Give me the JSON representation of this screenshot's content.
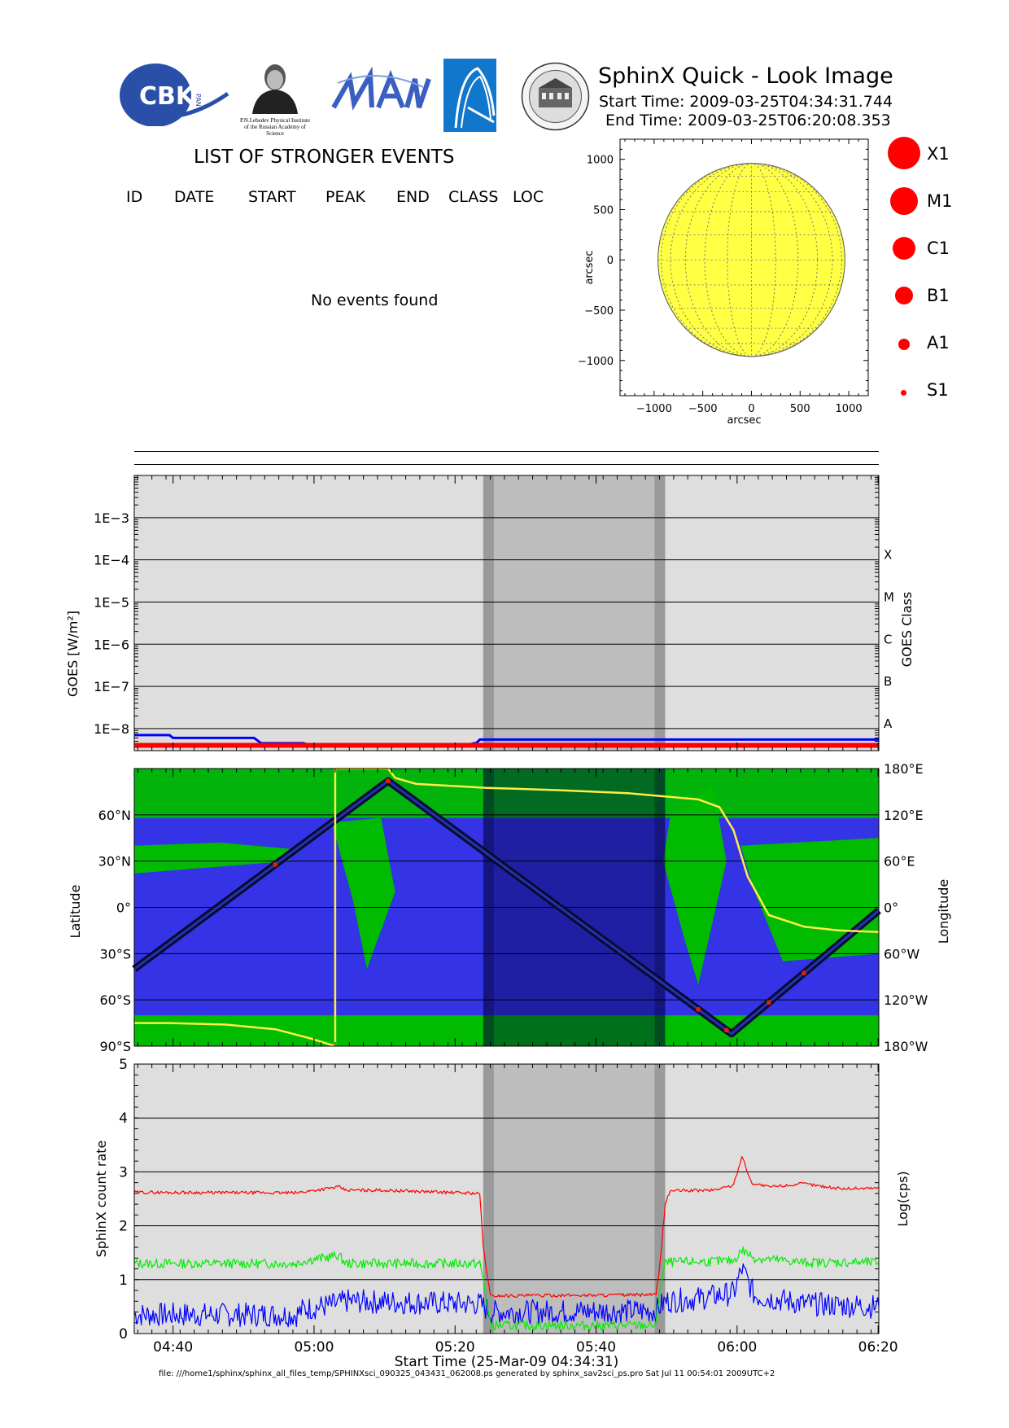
{
  "header": {
    "title": "SphinX Quick - Look Image",
    "start_time": "Start Time: 2009-03-25T04:34:31.744",
    "end_time": "End Time: 2009-03-25T06:20:08.353",
    "logos": {
      "cbk": "CBK",
      "cbk_small": "PAN",
      "lebedev": "P.N.Lebedev Physical Institute of the Russian Academy of Science"
    }
  },
  "events_list": {
    "title": "LIST OF STRONGER EVENTS",
    "columns": [
      "ID",
      "DATE",
      "START",
      "PEAK",
      "END",
      "CLASS",
      "LOC"
    ],
    "empty_message": "No events found"
  },
  "legend": {
    "items": [
      {
        "label": "X1",
        "radius": 20
      },
      {
        "label": "M1",
        "radius": 17
      },
      {
        "label": "C1",
        "radius": 14
      },
      {
        "label": "B1",
        "radius": 11
      },
      {
        "label": "A1",
        "radius": 7
      },
      {
        "label": "S1",
        "radius": 3.5
      }
    ],
    "color": "#ff0000"
  },
  "chart_data": [
    {
      "type": "scatter",
      "name": "sun_disk",
      "xlabel": "arcsec",
      "ylabel": "arcsec",
      "xlim": [
        -1350,
        1200
      ],
      "ylim": [
        -1350,
        1200
      ],
      "xticks": [
        -1000,
        -500,
        0,
        500,
        1000
      ],
      "yticks": [
        -1000,
        -500,
        0,
        500,
        1000
      ],
      "xtick_labels": [
        "−1000",
        "−500",
        "0",
        "500",
        "1000"
      ],
      "ytick_labels": [
        "−1000",
        "−500",
        "0",
        "500",
        "1000"
      ],
      "disk_center": [
        0,
        0
      ],
      "disk_radius": 960,
      "disk_color": "#ffff44",
      "events": []
    },
    {
      "type": "line",
      "name": "goes_flux",
      "ylabel": "GOES [W/m²]",
      "ylabel_right": "GOES Class",
      "log_scale": true,
      "ylim": [
        3e-09,
        0.01
      ],
      "ytick_labels": [
        {
          "value": 0.001,
          "label": "1E−3"
        },
        {
          "value": 0.0001,
          "label": "1E−4"
        },
        {
          "value": 1e-05,
          "label": "1E−5"
        },
        {
          "value": 1e-06,
          "label": "1E−6"
        },
        {
          "value": 1e-07,
          "label": "1E−7"
        },
        {
          "value": 1e-08,
          "label": "1E−8"
        }
      ],
      "class_labels": [
        {
          "value": 0.0001,
          "label": "X"
        },
        {
          "value": 1e-05,
          "label": "M"
        },
        {
          "value": 1e-06,
          "label": "C"
        },
        {
          "value": 1e-07,
          "label": "B"
        },
        {
          "value": 1e-08,
          "label": "A"
        }
      ],
      "shade_ranges_minutes": [
        [
          49.5,
          75.3
        ]
      ],
      "shade_edges_minutes": [
        [
          49.5,
          51.0
        ],
        [
          73.8,
          75.3
        ]
      ],
      "series": [
        {
          "color": "#0000ff",
          "x_minutes": [
            0,
            5,
            5.5,
            17,
            18,
            24,
            25,
            47,
            48.2,
            48.5,
            49,
            90,
            105.6
          ],
          "y": [
            7e-09,
            7e-09,
            6e-09,
            6e-09,
            4.5e-09,
            4.5e-09,
            4e-09,
            4e-09,
            4.5e-09,
            4.5e-09,
            5.5e-09,
            5.5e-09,
            5.5e-09
          ]
        },
        {
          "color": "#ff0000",
          "x_minutes": [
            0,
            105.6
          ],
          "y": [
            4e-09,
            4e-09
          ]
        }
      ]
    },
    {
      "type": "line",
      "name": "orbit_map",
      "ylabel": "Latitude",
      "ylabel_right": "Longitude",
      "ylim": [
        -90,
        90
      ],
      "yticks": [
        -90,
        -60,
        -30,
        0,
        30,
        60
      ],
      "ytick_labels": [
        "90°S",
        "60°S",
        "30°S",
        "0°",
        "30°N",
        "60°N"
      ],
      "yticks_right": [
        -180,
        -120,
        -60,
        0,
        60,
        120,
        180
      ],
      "ytick_labels_right": [
        "180°W",
        "120°W",
        "60°W",
        "0°",
        "60°E",
        "120°E",
        "180°E"
      ],
      "colors": {
        "ocean": "#3434e6",
        "land": "#00bb00",
        "track": "#0a0a33",
        "track_hot": "#dd2200",
        "longitude": "#ffee44"
      },
      "latitude_track": {
        "x_minutes": [
          0,
          36,
          84.7,
          105.6
        ],
        "y": [
          -40,
          82,
          -82,
          -2
        ]
      },
      "longitude_track": {
        "x_minutes": [
          0,
          5,
          13,
          20,
          25,
          28.5,
          36,
          37,
          40,
          50,
          60,
          70,
          80,
          83,
          85,
          87,
          90,
          95,
          100,
          105.6
        ],
        "y": [
          -150,
          -150,
          -152,
          -158,
          -170,
          -180,
          180,
          168,
          160,
          155,
          152,
          148,
          140,
          130,
          100,
          40,
          -10,
          -25,
          -30,
          -32
        ]
      }
    },
    {
      "type": "line",
      "name": "sphinx_count_rate",
      "ylabel": "SphinX count rate",
      "ylabel_right": "Log(cps)",
      "xlabel": "Start Time (25-Mar-09 04:34:31)",
      "ylim": [
        0,
        5
      ],
      "yticks": [
        0,
        1,
        2,
        3,
        4,
        5
      ],
      "ytick_labels": [
        "0",
        "1",
        "2",
        "3",
        "4",
        "5"
      ],
      "xlim_minutes": [
        0,
        105.6
      ],
      "xticks_minutes": [
        5.5,
        25.5,
        45.5,
        65.5,
        85.5,
        105.5
      ],
      "xtick_labels": [
        "04:40",
        "05:00",
        "05:20",
        "05:40",
        "06:00",
        "06:20"
      ],
      "series": [
        {
          "color": "#ff0000",
          "x_minutes": [
            0,
            23,
            24,
            29,
            30,
            35,
            49,
            49.5,
            50.5,
            74,
            74.5,
            75.3,
            76,
            82,
            85,
            86.2,
            87.5,
            90,
            95,
            100,
            105.6
          ],
          "y": [
            2.62,
            2.61,
            2.63,
            2.72,
            2.66,
            2.66,
            2.6,
            1.6,
            0.7,
            0.72,
            1.2,
            2.4,
            2.65,
            2.66,
            2.75,
            3.3,
            2.8,
            2.72,
            2.78,
            2.69,
            2.7
          ]
        },
        {
          "color": "#00ee00",
          "x_minutes": [
            0,
            23,
            24,
            29,
            30,
            49,
            49.5,
            50.5,
            74,
            74.5,
            75.3,
            76,
            85,
            86.2,
            88,
            95,
            105.6
          ],
          "y": [
            1.3,
            1.3,
            1.35,
            1.45,
            1.3,
            1.3,
            1.0,
            0.15,
            0.15,
            0.8,
            1.3,
            1.32,
            1.35,
            1.55,
            1.4,
            1.32,
            1.32
          ]
        },
        {
          "color": "#0000ff",
          "x_minutes": [
            0,
            23,
            24,
            29,
            30,
            49,
            50.5,
            74,
            75.3,
            80,
            85,
            86.2,
            88,
            95,
            105.6
          ],
          "y": [
            0.35,
            0.35,
            0.45,
            0.55,
            0.6,
            0.55,
            0.4,
            0.42,
            0.6,
            0.65,
            0.75,
            1.2,
            0.7,
            0.55,
            0.5
          ]
        }
      ],
      "shade_ranges_minutes": [
        [
          49.5,
          75.3
        ]
      ],
      "shade_edges_minutes": [
        [
          49.5,
          51.0
        ],
        [
          73.8,
          75.3
        ]
      ]
    }
  ],
  "footer": {
    "text": "file: ///home1/sphinx/sphinx_all_files_temp/SPHINXsci_090325_043431_062008.ps generated by sphinx_sav2sci_ps.pro Sat Jul 11 00:54:01 2009UTC+2"
  }
}
